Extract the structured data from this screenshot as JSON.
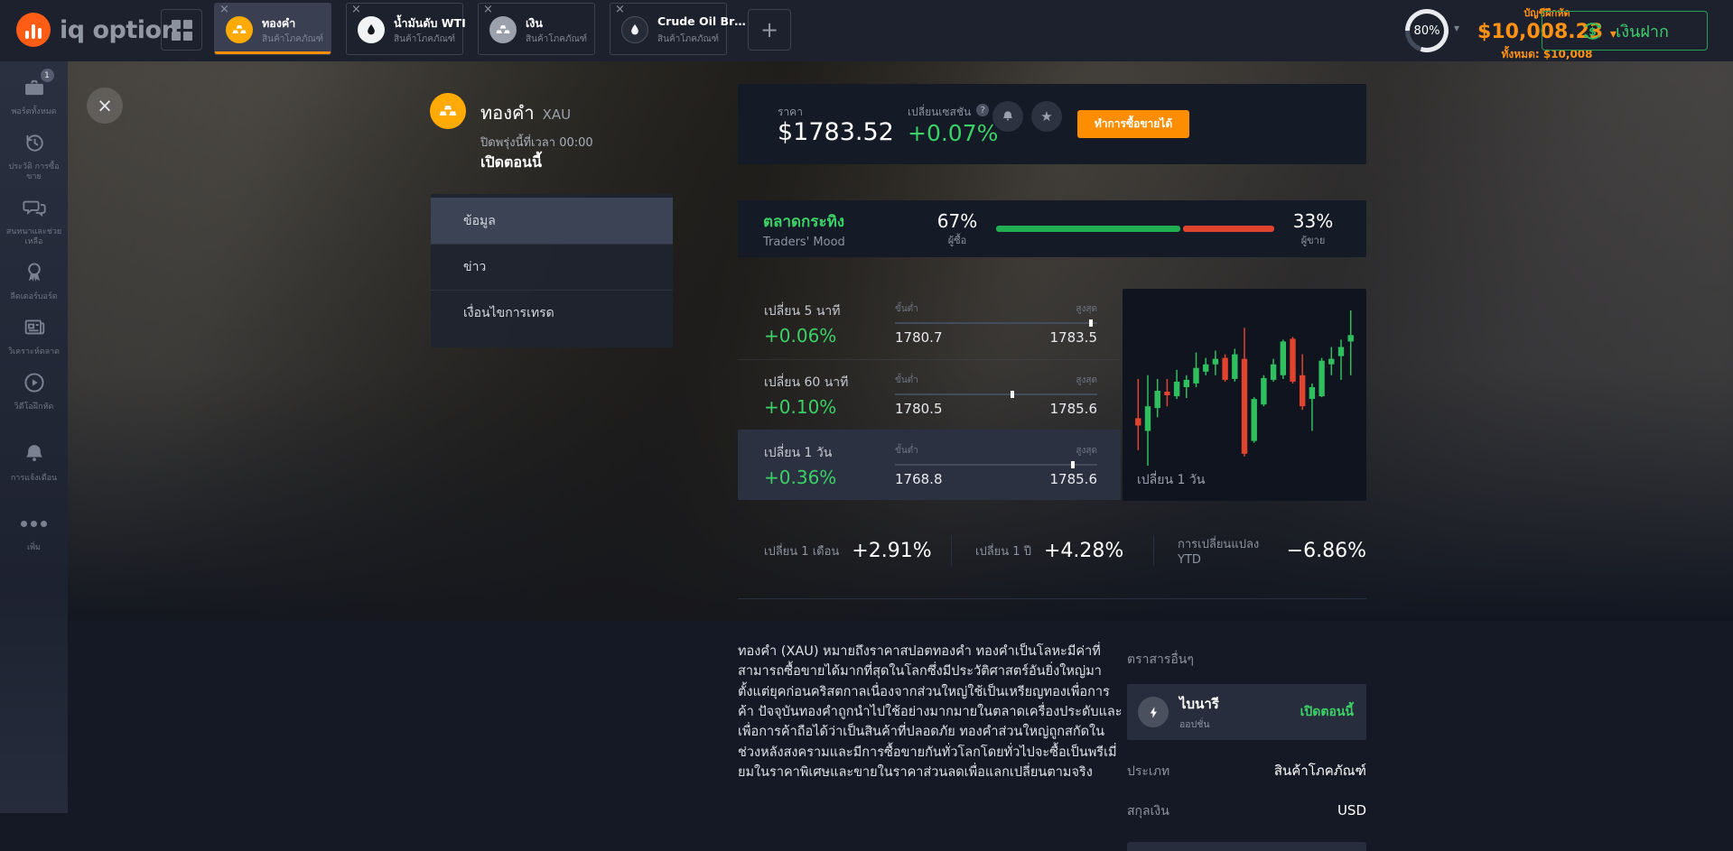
{
  "icons": {
    "plus": "+",
    "caret": "▾",
    "close": "×",
    "star": "★",
    "help": "?",
    "tab_close": "×"
  },
  "topbar": {
    "logo_text": "iq option",
    "tabs": [
      {
        "title": "ทองคำ",
        "subtitle": "สินค้าโภคภัณฑ์",
        "icon": "gold-bars-icon",
        "active": true
      },
      {
        "title": "น้ำมันดับ WTI",
        "subtitle": "สินค้าโภคภัณฑ์",
        "icon": "oil-drop-icon",
        "active": false
      },
      {
        "title": "เงิน",
        "subtitle": "สินค้าโภคภัณฑ์",
        "icon": "silver-bars-icon",
        "active": false
      },
      {
        "title": "Crude Oil Br…",
        "subtitle": "สินค้าโภคภัณฑ์",
        "icon": "oil-drop-icon",
        "active": false
      }
    ],
    "account": {
      "progress": "80%",
      "type_label": "บัญชีฝึกหัด",
      "balance": "$10,008.23",
      "total_label": "ทั้งหมด: $10,008"
    },
    "deposit_label": "เงินฝาก"
  },
  "sidebar": {
    "items": [
      {
        "label": "พอร์ตทั้งหมด",
        "icon": "briefcase-icon",
        "badge": "1"
      },
      {
        "label": "ประวัติ การซื้อขาย",
        "icon": "history-icon"
      },
      {
        "label": "สนทนาและช่วยเหลือ",
        "icon": "chat-icon"
      },
      {
        "label": "ลีดเดอร์บอร์ด",
        "icon": "medal-icon"
      },
      {
        "label": "วิเคราะห์ตลาด",
        "icon": "news-icon"
      },
      {
        "label": "วิดีโอฝึกหัด",
        "icon": "video-icon"
      },
      {
        "label": "การแจ้งเตือน",
        "icon": "bell-icon"
      },
      {
        "label": "เพิ่ม",
        "icon": "dots-icon"
      }
    ]
  },
  "main": {
    "asset": {
      "name": "ทองคำ",
      "ticker": "XAU",
      "closing_info": "ปิดพรุ่งนี้ที่เวลา 00:00",
      "status": "เปิดตอนนี้"
    },
    "menu": {
      "items": [
        "ข้อมูล",
        "ข่าว",
        "เงื่อนไขการเทรด"
      ],
      "active_index": 0
    },
    "price_panel": {
      "price_label": "ราคา",
      "price": "$1783.52",
      "session_label": "เปลี่ยนเซสชัน",
      "session_change": "+0.07%",
      "trade_button": "ทำการซื้อขายได้"
    },
    "mood": {
      "title": "ตลาดกระทิง",
      "subtitle": "Traders' Mood",
      "buyers_pct": "67%",
      "buyers_label": "ผู้ซื้อ",
      "sellers_pct": "33%",
      "sellers_label": "ผู้ขาย",
      "buyers_value": 67,
      "sellers_value": 33
    },
    "changes": [
      {
        "label": "เปลี่ยน 5 นาที",
        "value": "+0.06%",
        "min_label": "ขั้นต่ำ",
        "max_label": "สูงสุด",
        "min": "1780.7",
        "max": "1783.5",
        "marker_pct": 97,
        "highlighted": false
      },
      {
        "label": "เปลี่ยน 60 นาที",
        "value": "+0.10%",
        "min_label": "ขั้นต่ำ",
        "max_label": "สูงสุด",
        "min": "1780.5",
        "max": "1785.6",
        "marker_pct": 58,
        "highlighted": false
      },
      {
        "label": "เปลี่ยน 1 วัน",
        "value": "+0.36%",
        "min_label": "ขั้นต่ำ",
        "max_label": "สูงสุด",
        "min": "1768.8",
        "max": "1785.6",
        "marker_pct": 88,
        "highlighted": true
      }
    ],
    "longterm": [
      {
        "label": "เปลี่ยน 1 เดือน",
        "value": "+2.91%"
      },
      {
        "label": "เปลี่ยน 1 ปี",
        "value": "+4.28%"
      },
      {
        "label": "การเปลี่ยนแปลง YTD",
        "value": "−6.86%"
      }
    ],
    "description": "ทองคำ (XAU) หมายถึงราคาสปอตทองคำ ทองคำเป็นโลหะมีค่าที่สามารถซื้อขายได้มากที่สุดในโลกซึ่งมีประวัติศาสตร์อันยิ่งใหญ่มาตั้งแต่ยุคก่อนคริสตกาลเนื่องจากส่วนใหญ่ใช้เป็นเหรียญทองเพื่อการค้า ปัจจุบันทองคำถูกนำไปใช้อย่างมากมายในตลาดเครื่องประดับและเพื่อการค้าถือได้ว่าเป็นสินค้าที่ปลอดภัย ทองคำส่วนใหญ่ถูกสกัดในช่วงหลังสงครามและมีการซื้อขายกันทั่วโลกโดยทั่วไปจะซื้อเป็นพรีเมี่ยมในราคาพิเศษและขายในราคาส่วนลดเพื่อแลกเปลี่ยนตามจริง",
    "other_instruments": {
      "title": "ตราสารอื่นๆ",
      "card": {
        "name": "ไบนารี",
        "sub": "ออปชั่น",
        "status": "เปิดตอนนี้"
      },
      "rows": [
        {
          "label": "ประเภท",
          "value": "สินค้าโภคภัณฑ์"
        },
        {
          "label": "สกุลเงิน",
          "value": "USD"
        }
      ]
    }
  },
  "colors": {
    "accent_orange": "#ff8d00",
    "positive_green": "#3bd167",
    "negative_red": "#e0432e"
  },
  "chart_data": {
    "type": "candlestick",
    "title": "เปลี่ยน 1 วัน",
    "ylim": [
      1768.8,
      1786.2
    ],
    "up_color": "#2fbf5f",
    "down_color": "#e0432e",
    "candles": [
      {
        "o": 1774.2,
        "h": 1778.5,
        "l": 1770.7,
        "c": 1773.4
      },
      {
        "o": 1772.8,
        "h": 1778.9,
        "l": 1769.0,
        "c": 1775.5
      },
      {
        "o": 1775.3,
        "h": 1778.5,
        "l": 1774.3,
        "c": 1777.2
      },
      {
        "o": 1777.1,
        "h": 1778.5,
        "l": 1775.5,
        "c": 1776.7
      },
      {
        "o": 1776.6,
        "h": 1779.5,
        "l": 1776.3,
        "c": 1778.2
      },
      {
        "o": 1777.6,
        "h": 1778.9,
        "l": 1776.4,
        "c": 1778.4
      },
      {
        "o": 1778.0,
        "h": 1781.4,
        "l": 1777.6,
        "c": 1779.7
      },
      {
        "o": 1779.3,
        "h": 1780.8,
        "l": 1778.9,
        "c": 1780.1
      },
      {
        "o": 1780.1,
        "h": 1781.6,
        "l": 1778.9,
        "c": 1780.7
      },
      {
        "o": 1780.8,
        "h": 1781.2,
        "l": 1778.2,
        "c": 1778.4
      },
      {
        "o": 1778.5,
        "h": 1781.8,
        "l": 1778.2,
        "c": 1781.2
      },
      {
        "o": 1780.7,
        "h": 1784.1,
        "l": 1770.0,
        "c": 1770.3
      },
      {
        "o": 1771.7,
        "h": 1776.5,
        "l": 1771.5,
        "c": 1776.3
      },
      {
        "o": 1775.7,
        "h": 1778.9,
        "l": 1775.5,
        "c": 1778.6
      },
      {
        "o": 1778.4,
        "h": 1780.7,
        "l": 1778.2,
        "c": 1780.1
      },
      {
        "o": 1778.9,
        "h": 1782.8,
        "l": 1778.5,
        "c": 1782.6
      },
      {
        "o": 1782.9,
        "h": 1783.1,
        "l": 1778.0,
        "c": 1778.2
      },
      {
        "o": 1778.9,
        "h": 1781.2,
        "l": 1775.1,
        "c": 1775.5
      },
      {
        "o": 1776.3,
        "h": 1778.0,
        "l": 1772.8,
        "c": 1777.6
      },
      {
        "o": 1776.6,
        "h": 1780.8,
        "l": 1776.5,
        "c": 1780.5
      },
      {
        "o": 1780.1,
        "h": 1782.0,
        "l": 1778.9,
        "c": 1780.7
      },
      {
        "o": 1781.0,
        "h": 1782.8,
        "l": 1778.4,
        "c": 1782.0
      },
      {
        "o": 1782.6,
        "h": 1786.0,
        "l": 1778.9,
        "c": 1783.3
      }
    ]
  }
}
